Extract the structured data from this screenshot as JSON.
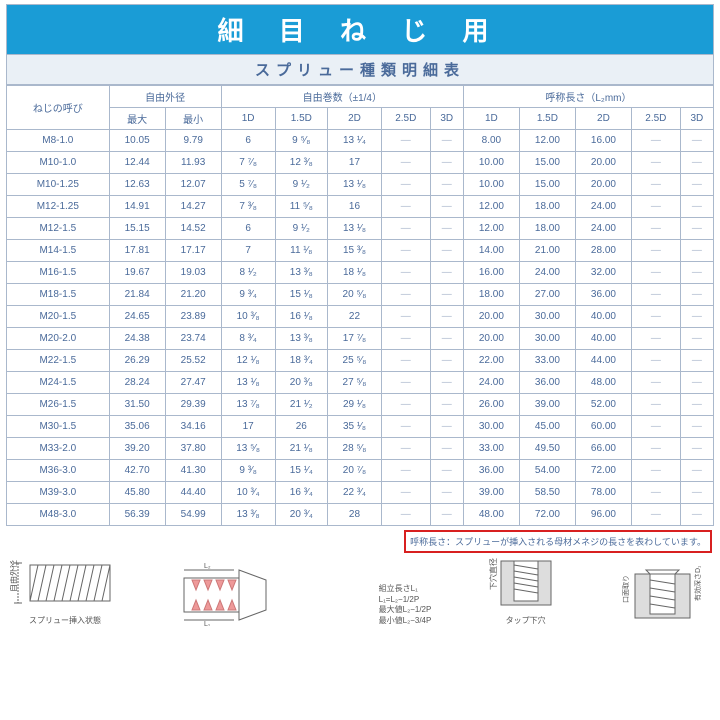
{
  "title": "細 目 ね じ 用",
  "subtitle": "スプリュー種類明細表",
  "group_headers": {
    "thread_call": "ねじの呼び",
    "free_od": "自由外径",
    "free_turns": "自由巻数（±1/4）",
    "nominal_len": "呼称長さ（L₂mm）"
  },
  "col_headers": {
    "max": "最大",
    "min": "最小",
    "d1": "1D",
    "d15": "1.5D",
    "d2": "2D",
    "d25": "2.5D",
    "d3": "3D"
  },
  "rows": [
    {
      "name": "M8-1.0",
      "max": "10.05",
      "min": "9.79",
      "t1": "6",
      "t15": "9 ⁵⁄₈",
      "t2": "13 ¹⁄₄",
      "t25": "—",
      "t3": "—",
      "l1": "8.00",
      "l15": "12.00",
      "l2": "16.00",
      "l25": "—",
      "l3": "—"
    },
    {
      "name": "M10-1.0",
      "max": "12.44",
      "min": "11.93",
      "t1": "7 ⁷⁄₈",
      "t15": "12 ³⁄₈",
      "t2": "17",
      "t25": "—",
      "t3": "—",
      "l1": "10.00",
      "l15": "15.00",
      "l2": "20.00",
      "l25": "—",
      "l3": "—"
    },
    {
      "name": "M10-1.25",
      "max": "12.63",
      "min": "12.07",
      "t1": "5 ⁷⁄₈",
      "t15": "9 ¹⁄₂",
      "t2": "13 ¹⁄₈",
      "t25": "—",
      "t3": "—",
      "l1": "10.00",
      "l15": "15.00",
      "l2": "20.00",
      "l25": "—",
      "l3": "—"
    },
    {
      "name": "M12-1.25",
      "max": "14.91",
      "min": "14.27",
      "t1": "7 ³⁄₈",
      "t15": "11 ⁵⁄₈",
      "t2": "16",
      "t25": "—",
      "t3": "—",
      "l1": "12.00",
      "l15": "18.00",
      "l2": "24.00",
      "l25": "—",
      "l3": "—"
    },
    {
      "name": "M12-1.5",
      "max": "15.15",
      "min": "14.52",
      "t1": "6",
      "t15": "9 ¹⁄₂",
      "t2": "13 ¹⁄₈",
      "t25": "—",
      "t3": "—",
      "l1": "12.00",
      "l15": "18.00",
      "l2": "24.00",
      "l25": "—",
      "l3": "—"
    },
    {
      "name": "M14-1.5",
      "max": "17.81",
      "min": "17.17",
      "t1": "7",
      "t15": "11 ¹⁄₈",
      "t2": "15 ³⁄₈",
      "t25": "—",
      "t3": "—",
      "l1": "14.00",
      "l15": "21.00",
      "l2": "28.00",
      "l25": "—",
      "l3": "—"
    },
    {
      "name": "M16-1.5",
      "max": "19.67",
      "min": "19.03",
      "t1": "8 ¹⁄₂",
      "t15": "13 ³⁄₈",
      "t2": "18 ¹⁄₈",
      "t25": "—",
      "t3": "—",
      "l1": "16.00",
      "l15": "24.00",
      "l2": "32.00",
      "l25": "—",
      "l3": "—"
    },
    {
      "name": "M18-1.5",
      "max": "21.84",
      "min": "21.20",
      "t1": "9 ³⁄₄",
      "t15": "15 ¹⁄₈",
      "t2": "20 ⁵⁄₈",
      "t25": "—",
      "t3": "—",
      "l1": "18.00",
      "l15": "27.00",
      "l2": "36.00",
      "l25": "—",
      "l3": "—"
    },
    {
      "name": "M20-1.5",
      "max": "24.65",
      "min": "23.89",
      "t1": "10 ³⁄₈",
      "t15": "16 ¹⁄₈",
      "t2": "22",
      "t25": "—",
      "t3": "—",
      "l1": "20.00",
      "l15": "30.00",
      "l2": "40.00",
      "l25": "—",
      "l3": "—"
    },
    {
      "name": "M20-2.0",
      "max": "24.38",
      "min": "23.74",
      "t1": "8 ³⁄₄",
      "t15": "13 ³⁄₈",
      "t2": "17 ⁷⁄₈",
      "t25": "—",
      "t3": "—",
      "l1": "20.00",
      "l15": "30.00",
      "l2": "40.00",
      "l25": "—",
      "l3": "—"
    },
    {
      "name": "M22-1.5",
      "max": "26.29",
      "min": "25.52",
      "t1": "12 ¹⁄₈",
      "t15": "18 ³⁄₄",
      "t2": "25 ⁵⁄₈",
      "t25": "—",
      "t3": "—",
      "l1": "22.00",
      "l15": "33.00",
      "l2": "44.00",
      "l25": "—",
      "l3": "—"
    },
    {
      "name": "M24-1.5",
      "max": "28.24",
      "min": "27.47",
      "t1": "13 ¹⁄₈",
      "t15": "20 ³⁄₈",
      "t2": "27 ⁵⁄₈",
      "t25": "—",
      "t3": "—",
      "l1": "24.00",
      "l15": "36.00",
      "l2": "48.00",
      "l25": "—",
      "l3": "—"
    },
    {
      "name": "M26-1.5",
      "max": "31.50",
      "min": "29.39",
      "t1": "13 ⁷⁄₈",
      "t15": "21 ¹⁄₂",
      "t2": "29 ¹⁄₈",
      "t25": "—",
      "t3": "—",
      "l1": "26.00",
      "l15": "39.00",
      "l2": "52.00",
      "l25": "—",
      "l3": "—"
    },
    {
      "name": "M30-1.5",
      "max": "35.06",
      "min": "34.16",
      "t1": "17",
      "t15": "26",
      "t2": "35 ¹⁄₈",
      "t25": "—",
      "t3": "—",
      "l1": "30.00",
      "l15": "45.00",
      "l2": "60.00",
      "l25": "—",
      "l3": "—"
    },
    {
      "name": "M33-2.0",
      "max": "39.20",
      "min": "37.80",
      "t1": "13 ⁵⁄₈",
      "t15": "21 ¹⁄₈",
      "t2": "28 ⁵⁄₈",
      "t25": "—",
      "t3": "—",
      "l1": "33.00",
      "l15": "49.50",
      "l2": "66.00",
      "l25": "—",
      "l3": "—"
    },
    {
      "name": "M36-3.0",
      "max": "42.70",
      "min": "41.30",
      "t1": "9 ³⁄₈",
      "t15": "15 ¹⁄₄",
      "t2": "20 ⁷⁄₈",
      "t25": "—",
      "t3": "—",
      "l1": "36.00",
      "l15": "54.00",
      "l2": "72.00",
      "l25": "—",
      "l3": "—"
    },
    {
      "name": "M39-3.0",
      "max": "45.80",
      "min": "44.40",
      "t1": "10 ³⁄₄",
      "t15": "16 ³⁄₄",
      "t2": "22 ³⁄₄",
      "t25": "—",
      "t3": "—",
      "l1": "39.00",
      "l15": "58.50",
      "l2": "78.00",
      "l25": "—",
      "l3": "—"
    },
    {
      "name": "M48-3.0",
      "max": "56.39",
      "min": "54.99",
      "t1": "13 ³⁄₈",
      "t15": "20 ³⁄₄",
      "t2": "28",
      "t25": "—",
      "t3": "—",
      "l1": "48.00",
      "l15": "72.00",
      "l2": "96.00",
      "l25": "—",
      "l3": "—"
    }
  ],
  "note": "呼称長さ：スプリューが挿入される母材メネジの長さを表わしています。",
  "diagrams": {
    "free_od_label": "自由外径",
    "insert_state": "スプリュー挿入状態",
    "assembly": {
      "line1": "組立長さL₁",
      "line2": "L₁=L₂−1/2P",
      "line3": "最大値L₂−1/2P",
      "line4": "最小値L₂−3/4P"
    },
    "hole_dia_v": "下穴直径",
    "tap_hole": "タップ下穴",
    "d_notch": "口面取り",
    "eff_depth_v": "有効深さD₁"
  },
  "colors": {
    "title_bg": "#1a9cd6",
    "subtitle_bg": "#eaf0f6",
    "border": "#aab8cc",
    "text": "#4a6a9a",
    "note_border": "#d82020"
  }
}
